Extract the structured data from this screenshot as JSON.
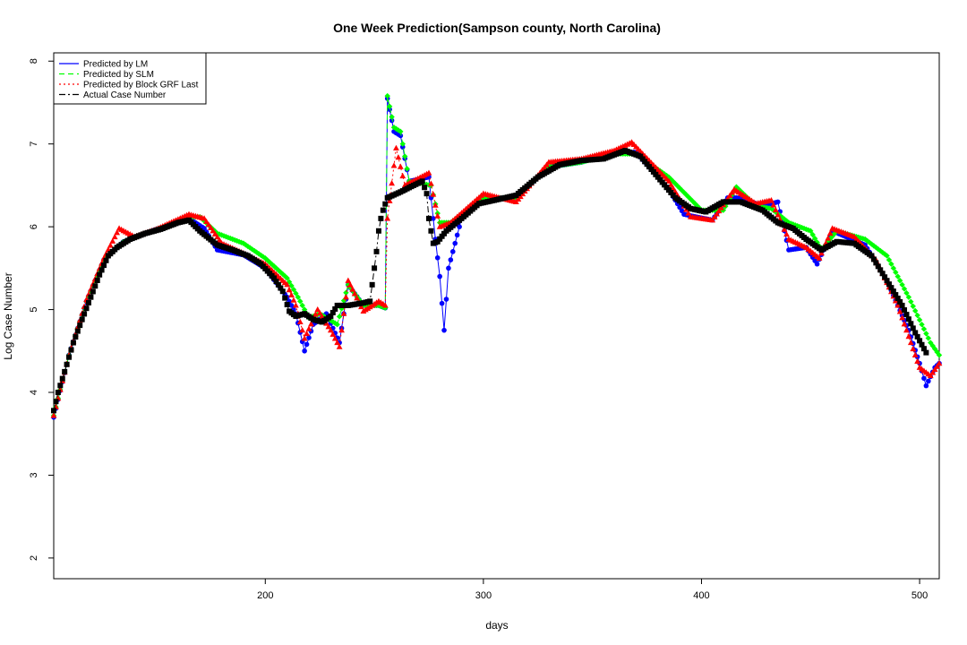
{
  "chart_data": {
    "type": "line",
    "title": "One Week Prediction(Sampson county, North Carolina)",
    "xlabel": "days",
    "ylabel": "Log Case Number",
    "xlim": [
      103,
      509
    ],
    "ylim": [
      1.75,
      8.1
    ],
    "x_ticks": [
      200,
      300,
      400,
      500
    ],
    "y_ticks": [
      2,
      3,
      4,
      5,
      6,
      7,
      8
    ],
    "grid": false,
    "legend_position": "top-left",
    "series": [
      {
        "name": "Predicted by LM",
        "color": "#0000ff",
        "line_style": "solid",
        "marker": "circle",
        "points": [
          [
            103,
            3.7
          ],
          [
            110,
            4.45
          ],
          [
            118,
            5.1
          ],
          [
            126,
            5.6
          ],
          [
            135,
            5.82
          ],
          [
            150,
            5.97
          ],
          [
            165,
            6.1
          ],
          [
            172,
            5.98
          ],
          [
            178,
            5.72
          ],
          [
            190,
            5.66
          ],
          [
            200,
            5.5
          ],
          [
            210,
            5.15
          ],
          [
            214,
            4.95
          ],
          [
            218,
            4.5
          ],
          [
            222,
            4.82
          ],
          [
            228,
            4.95
          ],
          [
            234,
            4.6
          ],
          [
            238,
            5.3
          ],
          [
            245,
            5.05
          ],
          [
            252,
            5.05
          ],
          [
            255,
            5.02
          ],
          [
            256,
            7.55
          ],
          [
            259,
            7.15
          ],
          [
            262,
            7.1
          ],
          [
            266,
            6.55
          ],
          [
            275,
            6.6
          ],
          [
            278,
            5.85
          ],
          [
            280,
            5.4
          ],
          [
            282,
            4.75
          ],
          [
            284,
            5.5
          ],
          [
            290,
            6.1
          ],
          [
            300,
            6.35
          ],
          [
            315,
            6.35
          ],
          [
            330,
            6.72
          ],
          [
            345,
            6.78
          ],
          [
            360,
            6.9
          ],
          [
            370,
            6.9
          ],
          [
            385,
            6.45
          ],
          [
            392,
            6.15
          ],
          [
            405,
            6.08
          ],
          [
            412,
            6.35
          ],
          [
            418,
            6.35
          ],
          [
            428,
            6.25
          ],
          [
            435,
            6.3
          ],
          [
            440,
            5.72
          ],
          [
            448,
            5.75
          ],
          [
            453,
            5.55
          ],
          [
            460,
            5.95
          ],
          [
            475,
            5.78
          ],
          [
            485,
            5.35
          ],
          [
            495,
            4.75
          ],
          [
            500,
            4.35
          ],
          [
            503,
            4.08
          ],
          [
            507,
            4.3
          ],
          [
            509,
            4.35
          ]
        ]
      },
      {
        "name": "Predicted by SLM",
        "color": "#00ff00",
        "line_style": "dashed",
        "marker": "diamond",
        "points": [
          [
            103,
            3.72
          ],
          [
            110,
            4.45
          ],
          [
            118,
            5.1
          ],
          [
            126,
            5.6
          ],
          [
            135,
            5.82
          ],
          [
            150,
            5.97
          ],
          [
            165,
            6.12
          ],
          [
            170,
            6.12
          ],
          [
            178,
            5.92
          ],
          [
            190,
            5.8
          ],
          [
            200,
            5.62
          ],
          [
            210,
            5.38
          ],
          [
            215,
            5.15
          ],
          [
            220,
            4.9
          ],
          [
            225,
            4.95
          ],
          [
            233,
            4.82
          ],
          [
            238,
            5.3
          ],
          [
            245,
            5.05
          ],
          [
            252,
            5.05
          ],
          [
            255,
            5.02
          ],
          [
            256,
            7.58
          ],
          [
            259,
            7.2
          ],
          [
            262,
            7.15
          ],
          [
            266,
            6.55
          ],
          [
            276,
            6.5
          ],
          [
            280,
            6.05
          ],
          [
            285,
            6.05
          ],
          [
            300,
            6.35
          ],
          [
            315,
            6.35
          ],
          [
            330,
            6.72
          ],
          [
            345,
            6.78
          ],
          [
            360,
            6.88
          ],
          [
            370,
            6.88
          ],
          [
            385,
            6.6
          ],
          [
            400,
            6.2
          ],
          [
            410,
            6.2
          ],
          [
            416,
            6.48
          ],
          [
            425,
            6.25
          ],
          [
            432,
            6.22
          ],
          [
            440,
            6.05
          ],
          [
            450,
            5.95
          ],
          [
            455,
            5.72
          ],
          [
            462,
            5.95
          ],
          [
            475,
            5.85
          ],
          [
            485,
            5.65
          ],
          [
            495,
            5.15
          ],
          [
            505,
            4.6
          ],
          [
            509,
            4.45
          ]
        ]
      },
      {
        "name": "Predicted by Block GRF Last",
        "color": "#ff0000",
        "line_style": "dotted",
        "marker": "triangle",
        "points": [
          [
            103,
            3.72
          ],
          [
            110,
            4.45
          ],
          [
            118,
            5.12
          ],
          [
            126,
            5.62
          ],
          [
            133,
            5.98
          ],
          [
            140,
            5.88
          ],
          [
            150,
            5.97
          ],
          [
            165,
            6.15
          ],
          [
            172,
            6.1
          ],
          [
            180,
            5.8
          ],
          [
            190,
            5.68
          ],
          [
            200,
            5.55
          ],
          [
            210,
            5.3
          ],
          [
            214,
            5.05
          ],
          [
            218,
            4.65
          ],
          [
            224,
            5.0
          ],
          [
            230,
            4.75
          ],
          [
            234,
            4.55
          ],
          [
            238,
            5.35
          ],
          [
            245,
            4.98
          ],
          [
            252,
            5.1
          ],
          [
            255,
            5.05
          ],
          [
            256,
            6.1
          ],
          [
            260,
            6.95
          ],
          [
            264,
            6.5
          ],
          [
            275,
            6.65
          ],
          [
            280,
            6.0
          ],
          [
            285,
            6.05
          ],
          [
            300,
            6.4
          ],
          [
            315,
            6.3
          ],
          [
            330,
            6.78
          ],
          [
            345,
            6.82
          ],
          [
            360,
            6.92
          ],
          [
            368,
            7.02
          ],
          [
            385,
            6.55
          ],
          [
            395,
            6.12
          ],
          [
            405,
            6.08
          ],
          [
            415,
            6.45
          ],
          [
            425,
            6.28
          ],
          [
            432,
            6.32
          ],
          [
            440,
            5.85
          ],
          [
            448,
            5.75
          ],
          [
            454,
            5.62
          ],
          [
            460,
            5.98
          ],
          [
            470,
            5.88
          ],
          [
            480,
            5.6
          ],
          [
            490,
            5.05
          ],
          [
            500,
            4.3
          ],
          [
            505,
            4.2
          ],
          [
            509,
            4.35
          ]
        ]
      },
      {
        "name": "Actual Case Number",
        "color": "#000000",
        "line_style": "dashdot",
        "marker": "square",
        "points": [
          [
            103,
            3.78
          ],
          [
            105,
            4.0
          ],
          [
            108,
            4.25
          ],
          [
            112,
            4.6
          ],
          [
            116,
            4.88
          ],
          [
            120,
            5.15
          ],
          [
            124,
            5.42
          ],
          [
            128,
            5.65
          ],
          [
            132,
            5.75
          ],
          [
            138,
            5.85
          ],
          [
            145,
            5.92
          ],
          [
            152,
            5.97
          ],
          [
            160,
            6.05
          ],
          [
            165,
            6.08
          ],
          [
            170,
            5.95
          ],
          [
            178,
            5.78
          ],
          [
            185,
            5.72
          ],
          [
            192,
            5.65
          ],
          [
            198,
            5.55
          ],
          [
            204,
            5.38
          ],
          [
            208,
            5.22
          ],
          [
            211,
            4.98
          ],
          [
            214,
            4.92
          ],
          [
            218,
            4.95
          ],
          [
            222,
            4.88
          ],
          [
            226,
            4.85
          ],
          [
            230,
            4.92
          ],
          [
            233,
            5.05
          ],
          [
            238,
            5.05
          ],
          [
            245,
            5.08
          ],
          [
            248,
            5.1
          ],
          [
            249,
            5.3
          ],
          [
            250,
            5.5
          ],
          [
            251,
            5.7
          ],
          [
            252,
            5.95
          ],
          [
            253,
            6.1
          ],
          [
            254,
            6.2
          ],
          [
            256,
            6.35
          ],
          [
            262,
            6.42
          ],
          [
            268,
            6.5
          ],
          [
            272,
            6.55
          ],
          [
            274,
            6.4
          ],
          [
            275,
            6.1
          ],
          [
            276,
            5.95
          ],
          [
            277,
            5.8
          ],
          [
            279,
            5.82
          ],
          [
            283,
            5.95
          ],
          [
            290,
            6.1
          ],
          [
            298,
            6.28
          ],
          [
            305,
            6.32
          ],
          [
            315,
            6.38
          ],
          [
            325,
            6.6
          ],
          [
            335,
            6.75
          ],
          [
            345,
            6.8
          ],
          [
            355,
            6.82
          ],
          [
            365,
            6.92
          ],
          [
            372,
            6.85
          ],
          [
            380,
            6.6
          ],
          [
            388,
            6.35
          ],
          [
            395,
            6.22
          ],
          [
            402,
            6.18
          ],
          [
            410,
            6.3
          ],
          [
            418,
            6.3
          ],
          [
            428,
            6.2
          ],
          [
            435,
            6.05
          ],
          [
            442,
            5.98
          ],
          [
            448,
            5.85
          ],
          [
            455,
            5.72
          ],
          [
            462,
            5.82
          ],
          [
            470,
            5.8
          ],
          [
            478,
            5.65
          ],
          [
            485,
            5.35
          ],
          [
            492,
            5.05
          ],
          [
            498,
            4.72
          ],
          [
            503,
            4.48
          ]
        ]
      }
    ]
  }
}
